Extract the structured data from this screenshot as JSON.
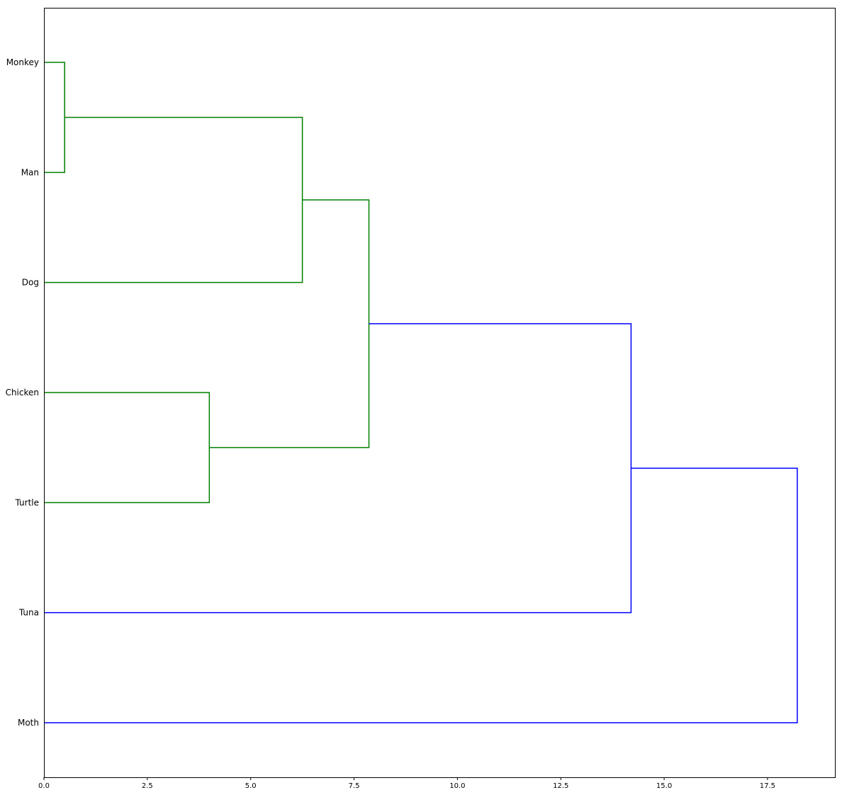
{
  "chart_data": {
    "type": "dendrogram",
    "orientation": "horizontal",
    "title": "",
    "xlabel": "",
    "ylabel": "",
    "xlim": [
      0,
      19.13
    ],
    "x_ticks": [
      "0.0",
      "2.5",
      "5.0",
      "7.5",
      "10.0",
      "12.5",
      "15.0",
      "17.5"
    ],
    "x_tick_values": [
      0,
      2.5,
      5,
      7.5,
      10,
      12.5,
      15,
      17.5
    ],
    "leaves": [
      "Monkey",
      "Man",
      "Dog",
      "Chicken",
      "Turtle",
      "Tuna",
      "Moth"
    ],
    "colors": {
      "cluster": "#008000",
      "above_threshold": "#0000ff"
    },
    "merges": [
      {
        "id": "m1",
        "left": "Monkey",
        "right": "Man",
        "height": 0.5,
        "color": "cluster"
      },
      {
        "id": "m2",
        "left": "m1",
        "right": "Dog",
        "height": 6.25,
        "color": "cluster"
      },
      {
        "id": "m3",
        "left": "Chicken",
        "right": "Turtle",
        "height": 4.0,
        "color": "cluster"
      },
      {
        "id": "m4",
        "left": "m2",
        "right": "m3",
        "height": 7.86,
        "color": "cluster"
      },
      {
        "id": "m5",
        "left": "m4",
        "right": "Tuna",
        "height": 14.2,
        "color": "above_threshold"
      },
      {
        "id": "m6",
        "left": "m5",
        "right": "Moth",
        "height": 18.22,
        "color": "above_threshold"
      }
    ]
  }
}
